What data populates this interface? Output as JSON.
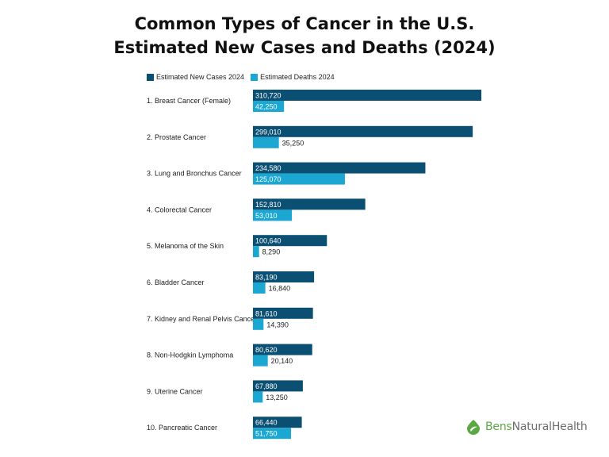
{
  "chart_data": {
    "type": "bar",
    "orientation": "horizontal",
    "title": "Common Types of Cancer in the U.S.",
    "subtitle": "Estimated New Cases and Deaths (2024)",
    "categories": [
      "1. Breast Cancer (Female)",
      "2. Prostate Cancer",
      "3. Lung and Bronchus Cancer",
      "4. Colorectal Cancer",
      "5. Melanoma of the Skin",
      "6. Bladder Cancer",
      "7. Kidney and Renal Pelvis Cancer",
      "8. Non-Hodgkin Lymphoma",
      "9. Uterine Cancer",
      "10. Pancreatic Cancer"
    ],
    "series": [
      {
        "name": "Estimated New Cases 2024",
        "color": "#0b4f72",
        "values": [
          310720,
          299010,
          234580,
          152810,
          100640,
          83190,
          81610,
          80620,
          67880,
          66440
        ],
        "labels": [
          "310,720",
          "299,010",
          "234,580",
          "152,810",
          "100,640",
          "83,190",
          "81,610",
          "80,620",
          "67,880",
          "66,440"
        ]
      },
      {
        "name": "Estimated Deaths 2024",
        "color": "#1ca7d3",
        "values": [
          42250,
          35250,
          125070,
          53010,
          8290,
          16840,
          14390,
          20140,
          13250,
          51750
        ],
        "labels": [
          "42,250",
          "35,250",
          "125,070",
          "53,010",
          "8,290",
          "16,840",
          "14,390",
          "20,140",
          "13,250",
          "51,750"
        ]
      }
    ],
    "xlim": [
      0,
      310720
    ],
    "grid": false,
    "legend": "top-left"
  },
  "branding": {
    "bens": "Bens",
    "rest": "NaturalHealth"
  }
}
